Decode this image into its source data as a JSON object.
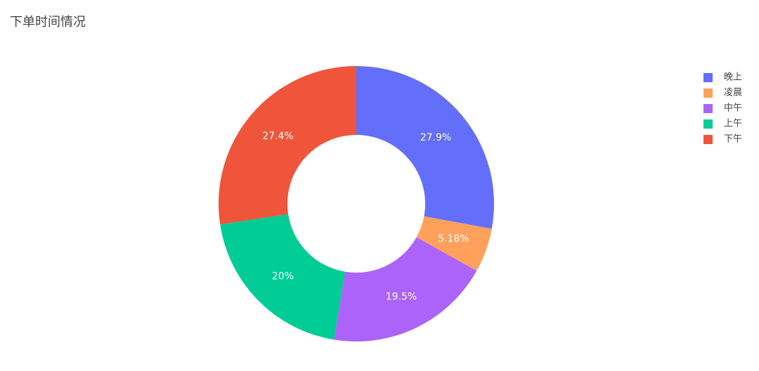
{
  "chart_data": {
    "type": "pie",
    "title": "下单时间情况",
    "hole": 0.5,
    "direction": "clockwise",
    "categories": [
      "晚上",
      "凌晨",
      "中午",
      "上午",
      "下午"
    ],
    "values": [
      27.9,
      5.18,
      19.5,
      20,
      27.4
    ],
    "value_labels": [
      "27.9%",
      "5.18%",
      "19.5%",
      "20%",
      "27.4%"
    ],
    "colors": [
      "#636efa",
      "#ffa15a",
      "#ab63fa",
      "#00cc96",
      "#ef553b"
    ],
    "legend": "top-right"
  }
}
